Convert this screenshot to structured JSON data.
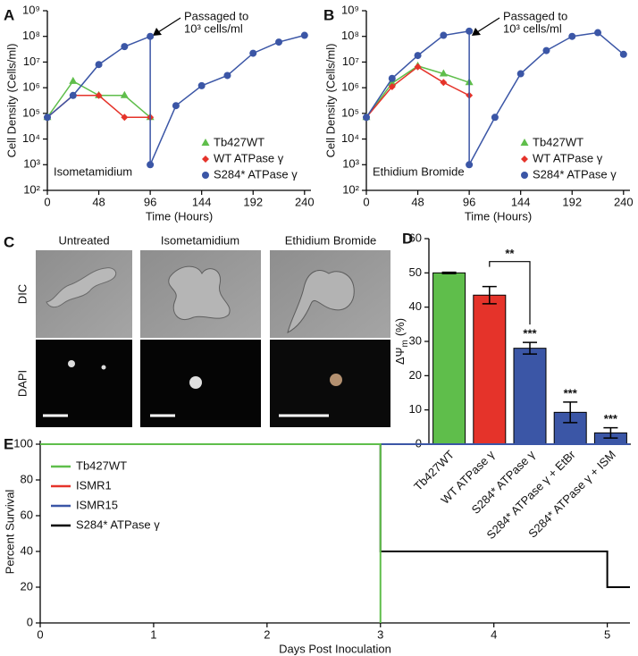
{
  "chart_data": [
    {
      "type": "line",
      "panel": "A",
      "xlabel": "Time (Hours)",
      "ylabel": "Cell Density (Cells/ml)",
      "inset_label": "Isometamidium",
      "annotation": [
        "Passaged to",
        "10³ cells/ml"
      ],
      "log_y": true,
      "legend": "lower right",
      "xlim": [
        0,
        246
      ],
      "xticks": [
        0,
        48,
        96,
        144,
        192,
        240
      ],
      "ylim": [
        100,
        1000000000
      ],
      "yticks": [
        {
          "value": 100,
          "label": "10²"
        },
        {
          "value": 1000,
          "label": "10³"
        },
        {
          "value": 10000,
          "label": "10⁴"
        },
        {
          "value": 100000,
          "label": "10⁵"
        },
        {
          "value": 1000000,
          "label": "10⁶"
        },
        {
          "value": 10000000,
          "label": "10⁷"
        },
        {
          "value": 100000000,
          "label": "10⁸"
        },
        {
          "value": 1000000000,
          "label": "10⁹"
        }
      ],
      "series": [
        {
          "name": "Tb427WT",
          "color": "#5fbe4b",
          "marker": "triangle",
          "x": [
            0,
            24,
            48,
            72,
            96
          ],
          "values": [
            70000,
            1800000,
            500000,
            500000,
            70000
          ]
        },
        {
          "name": "WT ATPase γ",
          "color": "#e5332a",
          "marker": "diamond",
          "x": [
            0,
            24,
            48,
            72,
            96
          ],
          "values": [
            70000,
            500000,
            500000,
            70000,
            70000
          ]
        },
        {
          "name": "S284* ATPase γ",
          "color": "#3b56a6",
          "marker": "circle",
          "x": [
            0,
            24,
            48,
            72,
            96,
            96,
            120,
            144,
            168,
            192,
            216,
            240
          ],
          "values": [
            70000,
            500000,
            8000000,
            40000000,
            100000000,
            1000,
            200000,
            1200000,
            3000000,
            22000000,
            60000000,
            110000000
          ]
        }
      ]
    },
    {
      "type": "line",
      "panel": "B",
      "xlabel": "Time (Hours)",
      "ylabel": "Cell Density (Cells/ml)",
      "inset_label": "Ethidium Bromide",
      "annotation": [
        "Passaged to",
        "10³ cells/ml"
      ],
      "log_y": true,
      "legend": "lower right",
      "xlim": [
        0,
        246
      ],
      "xticks": [
        0,
        48,
        96,
        144,
        192,
        240
      ],
      "ylim": [
        100,
        1000000000
      ],
      "yticks": [
        {
          "value": 100,
          "label": "10²"
        },
        {
          "value": 1000,
          "label": "10³"
        },
        {
          "value": 10000,
          "label": "10⁴"
        },
        {
          "value": 100000,
          "label": "10⁵"
        },
        {
          "value": 1000000,
          "label": "10⁶"
        },
        {
          "value": 10000000,
          "label": "10⁷"
        },
        {
          "value": 100000000,
          "label": "10⁸"
        },
        {
          "value": 1000000000,
          "label": "10⁹"
        }
      ],
      "series": [
        {
          "name": "Tb427WT",
          "color": "#5fbe4b",
          "marker": "triangle",
          "x": [
            0,
            24,
            48,
            72,
            96
          ],
          "values": [
            70000,
            1500000,
            7000000,
            3500000,
            1600000
          ]
        },
        {
          "name": "WT ATPase γ",
          "color": "#e5332a",
          "marker": "diamond",
          "x": [
            0,
            24,
            48,
            72,
            96
          ],
          "values": [
            70000,
            1100000,
            6500000,
            1600000,
            500000
          ]
        },
        {
          "name": "S284* ATPase γ",
          "color": "#3b56a6",
          "marker": "circle",
          "x": [
            0,
            24,
            48,
            72,
            96,
            96,
            120,
            144,
            168,
            192,
            216,
            240
          ],
          "values": [
            70000,
            2300000,
            18000000,
            110000000,
            160000000,
            1000,
            70000,
            3500000,
            28000000,
            100000000,
            140000000,
            20000000
          ]
        }
      ]
    },
    {
      "type": "bar",
      "panel": "D",
      "ylabel": "ΔΨ",
      "ylabel_sub": "m",
      "ylabel_unit": "(%)",
      "categories": [
        "Tb427WT",
        "WT ATPase γ",
        "S284* ATPase γ",
        "S284* ATPase γ + EtBr",
        "S284* ATPase γ + ISM"
      ],
      "values": [
        50,
        43.5,
        28,
        9.3,
        3.3
      ],
      "errors": [
        0.2,
        2.5,
        1.7,
        3,
        1.5
      ],
      "colors": [
        "#5fbe4b",
        "#e5332a",
        "#3b56a6",
        "#3b56a6",
        "#3b56a6"
      ],
      "ylim": [
        0,
        60
      ],
      "yticks": [
        0,
        10,
        20,
        30,
        40,
        50,
        60
      ],
      "annotations": [
        {
          "text": "**",
          "categories": [
            1,
            2
          ]
        },
        {
          "text": "***",
          "categories": [
            2
          ]
        },
        {
          "text": "***",
          "categories": [
            3
          ]
        },
        {
          "text": "***",
          "categories": [
            4
          ]
        }
      ]
    },
    {
      "type": "step",
      "panel": "E",
      "xlabel": "Days Post Inoculation",
      "ylabel": "Percent Survival",
      "legend": "upper left",
      "xlim": [
        0,
        5.2
      ],
      "xticks": [
        0,
        1,
        2,
        3,
        4,
        5
      ],
      "ylim": [
        0,
        102
      ],
      "yticks": [
        0,
        20,
        40,
        60,
        80,
        100
      ],
      "series": [
        {
          "name": "Tb427WT",
          "color": "#5fbe4b",
          "x": [
            0,
            3,
            3
          ],
          "values": [
            100,
            100,
            0
          ]
        },
        {
          "name": "ISMR1",
          "color": "#e5332a",
          "x": [
            0,
            5.2
          ],
          "values": [
            100,
            100
          ]
        },
        {
          "name": "ISMR15",
          "color": "#3b56a6",
          "x": [
            0,
            5.2
          ],
          "values": [
            100,
            100
          ]
        },
        {
          "name": "S284* ATPase γ",
          "color": "#000000",
          "x": [
            0,
            3,
            3,
            5,
            5,
            5.2
          ],
          "values": [
            100,
            100,
            40,
            40,
            20,
            20
          ]
        }
      ]
    }
  ],
  "image_panel": {
    "label": "C",
    "columns": [
      "Untreated",
      "Isometamidium",
      "Ethidium Bromide"
    ],
    "rows": [
      "DIC",
      "DAPI"
    ]
  }
}
